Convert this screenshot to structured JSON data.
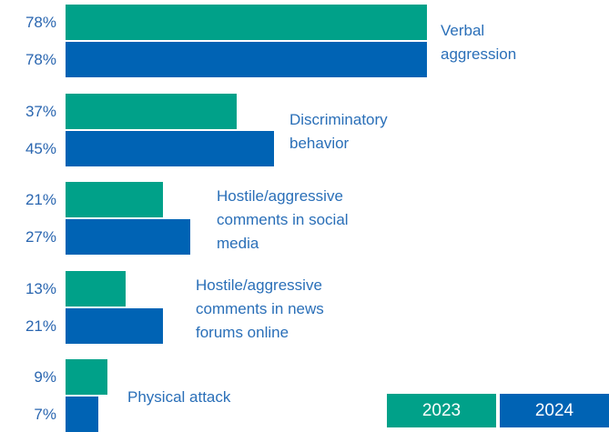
{
  "chart_data": {
    "type": "bar",
    "orientation": "horizontal",
    "categories": [
      "Verbal aggression",
      "Discriminatory behavior",
      "Hostile/aggressive comments in social media",
      "Hostile/aggressive comments in news forums online",
      "Physical attack"
    ],
    "series": [
      {
        "name": "2023",
        "color": "#00a189",
        "values": [
          78,
          37,
          21,
          13,
          9
        ],
        "value_labels": [
          "78%",
          "37%",
          "21%",
          "13%",
          "9%"
        ]
      },
      {
        "name": "2024",
        "color": "#0063b4",
        "values": [
          78,
          45,
          27,
          21,
          7
        ],
        "value_labels": [
          "78%",
          "45%",
          "27%",
          "21%",
          "7%"
        ]
      }
    ],
    "legend": "bottom-right"
  }
}
